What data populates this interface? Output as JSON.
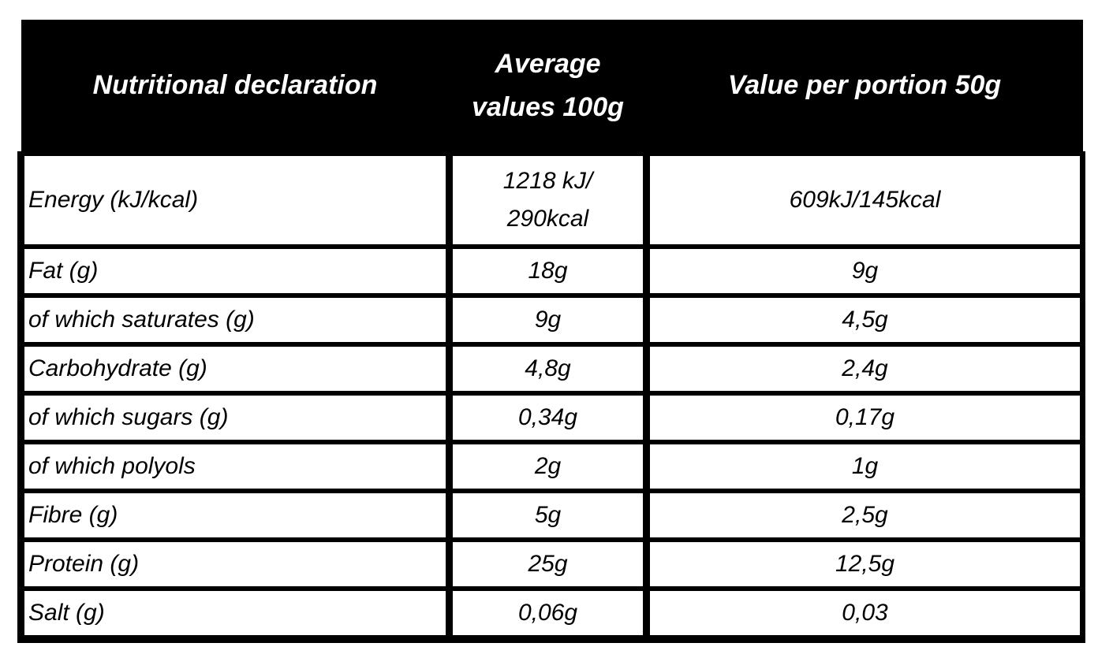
{
  "nutrition_table": {
    "header": {
      "col1": "Nutritional declaration",
      "col2": "Average\nvalues 100g",
      "col3": "Value per portion 50g"
    },
    "rows": [
      {
        "label": "Energy (kJ/kcal)",
        "per_100g": "1218 kJ/\n290kcal",
        "per_portion": "609kJ/145kcal"
      },
      {
        "label": "Fat (g)",
        "per_100g": "18g",
        "per_portion": "9g"
      },
      {
        "label": "of which saturates (g)",
        "per_100g": "9g",
        "per_portion": "4,5g"
      },
      {
        "label": "Carbohydrate (g)",
        "per_100g": "4,8g",
        "per_portion": "2,4g"
      },
      {
        "label": "of which sugars (g)",
        "per_100g": "0,34g",
        "per_portion": "0,17g"
      },
      {
        "label": "of which polyols",
        "per_100g": "2g",
        "per_portion": "1g"
      },
      {
        "label": "Fibre (g)",
        "per_100g": "5g",
        "per_portion": "2,5g"
      },
      {
        "label": "Protein (g)",
        "per_100g": "25g",
        "per_portion": "12,5g"
      },
      {
        "label": "Salt (g)",
        "per_100g": "0,06g",
        "per_portion": "0,03"
      }
    ],
    "colors": {
      "header_bg": "#000000",
      "header_text": "#ffffff",
      "body_text": "#000000",
      "border": "#000000",
      "background": "#ffffff"
    }
  }
}
